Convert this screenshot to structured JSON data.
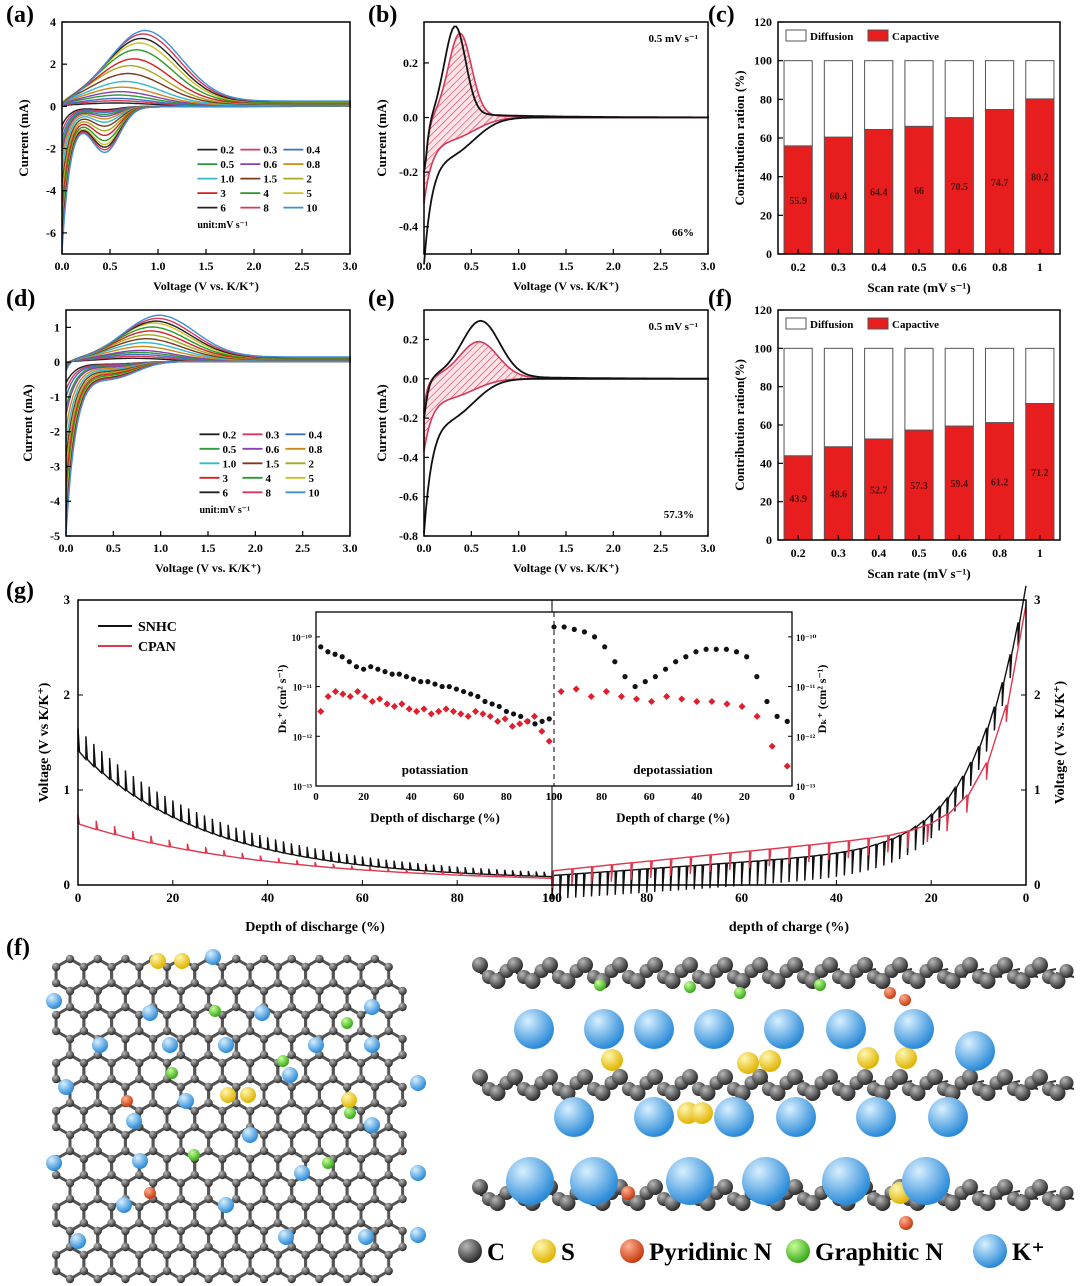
{
  "panel_labels": {
    "a": "(a)",
    "b": "(b)",
    "c": "(c)",
    "d": "(d)",
    "e": "(e)",
    "f": "(f)",
    "g": "(g)",
    "h": "(f)"
  },
  "chart_data": [
    {
      "id": "a",
      "type": "line",
      "xlabel": "Voltage (V vs. K/K⁺)",
      "ylabel": "Current (mA)",
      "xlim": [
        0,
        3
      ],
      "ylim": [
        -7,
        4
      ],
      "xticks": [
        "0.0",
        "0.5",
        "1.0",
        "1.5",
        "2.0",
        "2.5",
        "3.0"
      ],
      "xtick_vals": [
        0,
        0.5,
        1,
        1.5,
        2,
        2.5,
        3
      ],
      "yticks": [
        "-6",
        "-4",
        "-2",
        "0",
        "2",
        "4"
      ],
      "ytick_vals": [
        -6,
        -4,
        -2,
        0,
        2,
        4
      ],
      "legend_title": "unit:mV s⁻¹",
      "series": [
        {
          "name": "0.2",
          "color": "#222222",
          "peak": 0.15,
          "ox": 0.55,
          "valley": -0.25,
          "cmin": -0.9
        },
        {
          "name": "0.3",
          "color": "#d6395a",
          "peak": 0.25,
          "ox": 0.56,
          "valley": -0.35,
          "cmin": -1.2
        },
        {
          "name": "0.4",
          "color": "#3e6fc4",
          "peak": 0.35,
          "ox": 0.57,
          "valley": -0.45,
          "cmin": -1.5
        },
        {
          "name": "0.5",
          "color": "#2e9a3a",
          "peak": 0.5,
          "ox": 0.58,
          "valley": -0.6,
          "cmin": -1.8
        },
        {
          "name": "0.6",
          "color": "#8a3fb0",
          "peak": 0.65,
          "ox": 0.6,
          "valley": -0.75,
          "cmin": -2.1
        },
        {
          "name": "0.8",
          "color": "#c98a1a",
          "peak": 0.85,
          "ox": 0.62,
          "valley": -0.95,
          "cmin": -2.5
        },
        {
          "name": "1.0",
          "color": "#33b8c9",
          "peak": 1.1,
          "ox": 0.65,
          "valley": -1.2,
          "cmin": -3.0
        },
        {
          "name": "1.5",
          "color": "#7a3a1a",
          "peak": 1.45,
          "ox": 0.68,
          "valley": -1.5,
          "cmin": -3.6
        },
        {
          "name": "2",
          "color": "#a8a820",
          "peak": 1.8,
          "ox": 0.7,
          "valley": -1.85,
          "cmin": -4.2
        },
        {
          "name": "3",
          "color": "#d62020",
          "peak": 2.1,
          "ox": 0.74,
          "valley": -2.2,
          "cmin": -4.8
        },
        {
          "name": "4",
          "color": "#2a9a2a",
          "peak": 2.5,
          "ox": 0.77,
          "valley": -2.6,
          "cmin": -5.4
        },
        {
          "name": "5",
          "color": "#c9c020",
          "peak": 2.8,
          "ox": 0.8,
          "valley": -2.9,
          "cmin": -5.9
        },
        {
          "name": "6",
          "color": "#222222",
          "peak": 3.0,
          "ox": 0.82,
          "valley": -3.1,
          "cmin": -6.2
        },
        {
          "name": "8",
          "color": "#d6395a",
          "peak": 3.2,
          "ox": 0.84,
          "valley": -3.3,
          "cmin": -6.5
        },
        {
          "name": "10",
          "color": "#3e8fd6",
          "peak": 3.35,
          "ox": 0.86,
          "valley": -3.5,
          "cmin": -6.8
        }
      ]
    },
    {
      "id": "b",
      "type": "line",
      "xlabel": "Voltage (V vs. K/K⁺)",
      "ylabel": "Current (mA)",
      "xlim": [
        0,
        3
      ],
      "ylim": [
        -0.5,
        0.35
      ],
      "xticks": [
        "0.0",
        "0.5",
        "1.0",
        "1.5",
        "2.0",
        "2.5",
        "3.0"
      ],
      "xtick_vals": [
        0,
        0.5,
        1,
        1.5,
        2,
        2.5,
        3
      ],
      "yticks": [
        "-0.4",
        "-0.2",
        "0.0",
        "0.2"
      ],
      "ytick_vals": [
        -0.4,
        -0.2,
        0,
        0.2
      ],
      "annotation": "0.5 mV s⁻¹",
      "percent": "66%",
      "total": {
        "peak": 0.32,
        "ox": 0.33,
        "cmin": -0.48
      },
      "capacitive": {
        "peak": 0.3,
        "ox": 0.38,
        "cmin": -0.28
      }
    },
    {
      "id": "c",
      "type": "bar",
      "xlabel": "Scan rate (mV s⁻¹)",
      "ylabel": "Contribution ration (%)",
      "ylim": [
        0,
        120
      ],
      "yticks": [
        "0",
        "20",
        "40",
        "60",
        "80",
        "100",
        "120"
      ],
      "ytick_vals": [
        0,
        20,
        40,
        60,
        80,
        100,
        120
      ],
      "categories": [
        "0.2",
        "0.3",
        "0.4",
        "0.5",
        "0.6",
        "0.8",
        "1"
      ],
      "series": [
        {
          "name": "Diffusion",
          "color": "#ffffff",
          "values": [
            44.1,
            39.6,
            35.6,
            34,
            29.5,
            25.3,
            19.8
          ]
        },
        {
          "name": "Capactive",
          "color": "#e81e1e",
          "values": [
            55.9,
            60.4,
            64.4,
            66,
            70.5,
            74.7,
            80.2
          ]
        }
      ],
      "labels": [
        "55.9",
        "60.4",
        "64.4",
        "66",
        "70.5",
        "74.7",
        "80.2"
      ]
    },
    {
      "id": "d",
      "type": "line",
      "xlabel": "Voltage (V vs. K/K⁺)",
      "ylabel": "Current (mA)",
      "xlim": [
        0,
        3
      ],
      "ylim": [
        -5,
        1.5
      ],
      "xticks": [
        "0.0",
        "0.5",
        "1.0",
        "1.5",
        "2.0",
        "2.5",
        "3.0"
      ],
      "xtick_vals": [
        0,
        0.5,
        1,
        1.5,
        2,
        2.5,
        3
      ],
      "yticks": [
        "-5",
        "-4",
        "-3",
        "-2",
        "-1",
        "0",
        "1"
      ],
      "ytick_vals": [
        -5,
        -4,
        -3,
        -2,
        -1,
        0,
        1
      ],
      "legend_title": "unit:mV s⁻¹",
      "series": [
        {
          "name": "0.2",
          "color": "#222222",
          "peak": 0.1,
          "ox": 0.7,
          "valley": -0.2,
          "cmin": -0.6
        },
        {
          "name": "0.3",
          "color": "#d6395a",
          "peak": 0.15,
          "ox": 0.72,
          "valley": -0.25,
          "cmin": -0.8
        },
        {
          "name": "0.4",
          "color": "#3e6fc4",
          "peak": 0.2,
          "ox": 0.74,
          "valley": -0.3,
          "cmin": -1.0
        },
        {
          "name": "0.5",
          "color": "#2e9a3a",
          "peak": 0.25,
          "ox": 0.76,
          "valley": -0.35,
          "cmin": -1.3
        },
        {
          "name": "0.6",
          "color": "#8a3fb0",
          "peak": 0.3,
          "ox": 0.78,
          "valley": -0.4,
          "cmin": -1.5
        },
        {
          "name": "0.8",
          "color": "#c98a1a",
          "peak": 0.4,
          "ox": 0.8,
          "valley": -0.5,
          "cmin": -1.9
        },
        {
          "name": "1.0",
          "color": "#33b8c9",
          "peak": 0.5,
          "ox": 0.82,
          "valley": -0.6,
          "cmin": -2.3
        },
        {
          "name": "1.5",
          "color": "#7a3a1a",
          "peak": 0.6,
          "ox": 0.84,
          "valley": -0.7,
          "cmin": -2.7
        },
        {
          "name": "2",
          "color": "#a8a820",
          "peak": 0.7,
          "ox": 0.86,
          "valley": -0.8,
          "cmin": -3.1
        },
        {
          "name": "3",
          "color": "#d62020",
          "peak": 0.8,
          "ox": 0.88,
          "valley": -0.9,
          "cmin": -3.5
        },
        {
          "name": "4",
          "color": "#2a9a2a",
          "peak": 0.9,
          "ox": 0.9,
          "valley": -1.0,
          "cmin": -3.9
        },
        {
          "name": "5",
          "color": "#c9c020",
          "peak": 1.0,
          "ox": 0.92,
          "valley": -1.1,
          "cmin": -4.2
        },
        {
          "name": "6",
          "color": "#222222",
          "peak": 1.05,
          "ox": 0.94,
          "valley": -1.15,
          "cmin": -4.5
        },
        {
          "name": "8",
          "color": "#d6395a",
          "peak": 1.12,
          "ox": 0.96,
          "valley": -1.2,
          "cmin": -4.7
        },
        {
          "name": "10",
          "color": "#3e8fd6",
          "peak": 1.2,
          "ox": 0.98,
          "valley": -1.3,
          "cmin": -4.9
        }
      ]
    },
    {
      "id": "e",
      "type": "line",
      "xlabel": "Voltage (V vs. K/K⁺)",
      "ylabel": "Current (mA)",
      "xlim": [
        0,
        3
      ],
      "ylim": [
        -0.8,
        0.35
      ],
      "xticks": [
        "0.0",
        "0.5",
        "1.0",
        "1.5",
        "2.0",
        "2.5",
        "3.0"
      ],
      "xtick_vals": [
        0,
        0.5,
        1,
        1.5,
        2,
        2.5,
        3
      ],
      "yticks": [
        "-0.8",
        "-0.6",
        "-0.4",
        "-0.2",
        "0.0",
        "0.2"
      ],
      "ytick_vals": [
        -0.8,
        -0.6,
        -0.4,
        -0.2,
        0,
        0.2
      ],
      "annotation": "0.5 mV s⁻¹",
      "percent": "57.3%",
      "total": {
        "peak": 0.28,
        "ox": 0.6,
        "cmin": -0.7
      },
      "capacitive": {
        "peak": 0.18,
        "ox": 0.58,
        "cmin": -0.33
      }
    },
    {
      "id": "f",
      "type": "bar",
      "xlabel": "Scan rate (mV s⁻¹)",
      "ylabel": "Contribution ration(%)",
      "ylim": [
        0,
        120
      ],
      "yticks": [
        "0",
        "20",
        "40",
        "60",
        "80",
        "100",
        "120"
      ],
      "ytick_vals": [
        0,
        20,
        40,
        60,
        80,
        100,
        120
      ],
      "categories": [
        "0.2",
        "0.3",
        "0.4",
        "0.5",
        "0.6",
        "0.8",
        "1"
      ],
      "series": [
        {
          "name": "Diffusion",
          "color": "#ffffff",
          "values": [
            56.1,
            51.4,
            47.3,
            42.7,
            40.6,
            38.8,
            28.8
          ]
        },
        {
          "name": "Capactive",
          "color": "#e81e1e",
          "values": [
            43.9,
            48.6,
            52.7,
            57.3,
            59.4,
            61.2,
            71.2
          ]
        }
      ],
      "labels": [
        "43.9",
        "48.6",
        "52.7",
        "57.3",
        "59.4",
        "61.2",
        "71.2"
      ]
    },
    {
      "id": "g",
      "type": "line",
      "xlabel_left": "Depth of discharge (%)",
      "xlabel_right": "depth of charge (%)",
      "ylabel_left": "Voltage (V vs K/K⁺)",
      "ylabel_right": "Voltage (V vs. K/K⁺)",
      "ylim": [
        0,
        3
      ],
      "yticks": [
        "0",
        "1",
        "2",
        "3"
      ],
      "ytick_vals": [
        0,
        1,
        2,
        3
      ],
      "xticks_left": [
        "0",
        "20",
        "40",
        "60",
        "80",
        "100"
      ],
      "xticks_right": [
        "100",
        "80",
        "60",
        "40",
        "20",
        "0"
      ],
      "series": [
        {
          "name": "SNHC",
          "color": "#111111"
        },
        {
          "name": "CPAN",
          "color": "#e0364e"
        }
      ],
      "inset": {
        "ylabel": "Dₖ⁺ (cm² s⁻¹)",
        "yticks": [
          "10⁻¹³",
          "10⁻¹²",
          "10⁻¹¹",
          "10⁻¹⁰"
        ],
        "xlabel_left": "Depth of discharge (%)",
        "xlabel_right": "Depth of charge (%)",
        "xticks_left": [
          "0",
          "20",
          "40",
          "60",
          "80",
          "100"
        ],
        "xticks_right": [
          "100",
          "80",
          "60",
          "40",
          "20",
          "0"
        ],
        "label_left": "potassiation",
        "label_right": "depotassiation",
        "snhc_left": [
          -10.2,
          -10.3,
          -10.35,
          -10.4,
          -10.5,
          -10.6,
          -10.65,
          -10.6,
          -10.65,
          -10.7,
          -10.75,
          -10.75,
          -10.8,
          -10.85,
          -10.9,
          -10.9,
          -10.95,
          -11.0,
          -11.0,
          -11.05,
          -11.1,
          -11.15,
          -11.2,
          -11.3,
          -11.35,
          -11.4,
          -11.5,
          -11.55,
          -11.6,
          -11.7,
          -11.75,
          -11.7,
          -11.65
        ],
        "cpan_left": [
          -11.5,
          -11.2,
          -11.1,
          -11.15,
          -11.2,
          -11.1,
          -11.2,
          -11.3,
          -11.25,
          -11.35,
          -11.4,
          -11.35,
          -11.45,
          -11.5,
          -11.45,
          -11.55,
          -11.5,
          -11.45,
          -11.5,
          -11.55,
          -11.6,
          -11.5,
          -11.55,
          -11.6,
          -11.7,
          -11.65,
          -11.8,
          -11.75,
          -11.7,
          -11.6,
          -11.9,
          -12.1
        ],
        "snhc_right": [
          -9.8,
          -9.8,
          -9.85,
          -9.9,
          -10.0,
          -10.2,
          -10.5,
          -10.8,
          -11.0,
          -10.9,
          -10.8,
          -10.65,
          -10.5,
          -10.4,
          -10.3,
          -10.25,
          -10.25,
          -10.25,
          -10.3,
          -10.4,
          -10.8,
          -11.3,
          -11.6,
          -11.7
        ],
        "cpan_right": [
          -11.1,
          -11.05,
          -11.2,
          -11.1,
          -11.2,
          -11.25,
          -11.3,
          -11.2,
          -11.25,
          -11.3,
          -11.3,
          -11.35,
          -11.4,
          -11.6,
          -12.2,
          -12.6
        ]
      }
    }
  ],
  "legend_bottom": [
    {
      "label": "C",
      "color": "#666666"
    },
    {
      "label": "S",
      "color": "#f0d020"
    },
    {
      "label": "Pyridinic N",
      "color": "#e0481c"
    },
    {
      "label": "Graphitic N",
      "color": "#40c020"
    },
    {
      "label": "K⁺",
      "color": "#3d9ee0"
    }
  ]
}
